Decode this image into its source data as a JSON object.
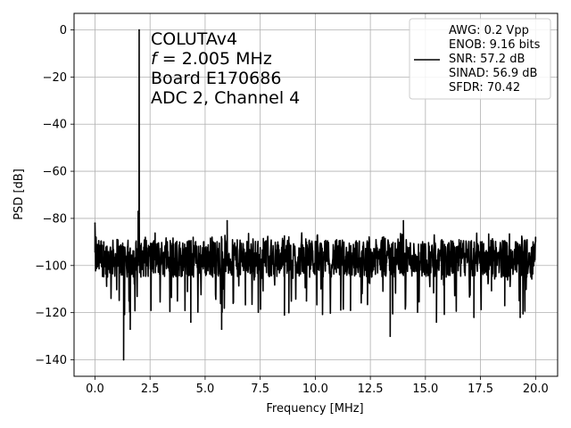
{
  "chart_data": {
    "type": "line",
    "xlabel": "Frequency [MHz]",
    "ylabel": "PSD [dB]",
    "xlim": [
      -0.95,
      21.0
    ],
    "ylim": [
      -147,
      7
    ],
    "grid": true,
    "xticks": [
      "0.0",
      "2.5",
      "5.0",
      "7.5",
      "10.0",
      "12.5",
      "15.0",
      "17.5",
      "20.0"
    ],
    "yticks": [
      "0",
      "−20",
      "−40",
      "−60",
      "−80",
      "−100",
      "−120",
      "−140"
    ],
    "annotation": {
      "line1": "COLUTAv4",
      "line2_var": "f",
      "line2_rest": " = 2.005 MHz",
      "line3": "Board E170686",
      "line4": "ADC 2, Channel 4"
    },
    "legend": {
      "placement": "top-right",
      "lines": [
        "AWG: 0.2 Vpp",
        "ENOB: 9.16 bits",
        "SNR: 57.2 dB",
        "SINAD: 56.9 dB",
        "SFDR: 70.42"
      ]
    },
    "series": [
      {
        "color": "#000000",
        "fundamental": {
          "x": 2.005,
          "y": 0
        },
        "noise_floor_mean": -97,
        "x": [
          0.0,
          0.05,
          0.1,
          0.2,
          0.4,
          0.8,
          1.2,
          1.3,
          1.33,
          1.4,
          1.6,
          1.96,
          2.0,
          2.005,
          2.01,
          2.05,
          4.2,
          4.35,
          5.6,
          5.75,
          5.8,
          6.0,
          8.6,
          8.8,
          9.3,
          9.6,
          11.6,
          12.0,
          13.4,
          13.5,
          14.0,
          15.5,
          16.2,
          17.2,
          17.5,
          18.0,
          18.6,
          19.3,
          19.7,
          20.0
        ],
        "y": [
          -82,
          -88,
          -100,
          -95,
          -90,
          -97,
          -104,
          -140,
          -110,
          -96,
          -127,
          -77,
          -78,
          0,
          -78,
          -98,
          -111,
          -124,
          -103,
          -127,
          -110,
          -81,
          -121,
          -120,
          -98,
          -115,
          -119,
          -98,
          -130,
          -98,
          -81,
          -124,
          -96,
          -122,
          -90,
          -97,
          -117,
          -122,
          -96,
          -88
        ]
      }
    ]
  }
}
